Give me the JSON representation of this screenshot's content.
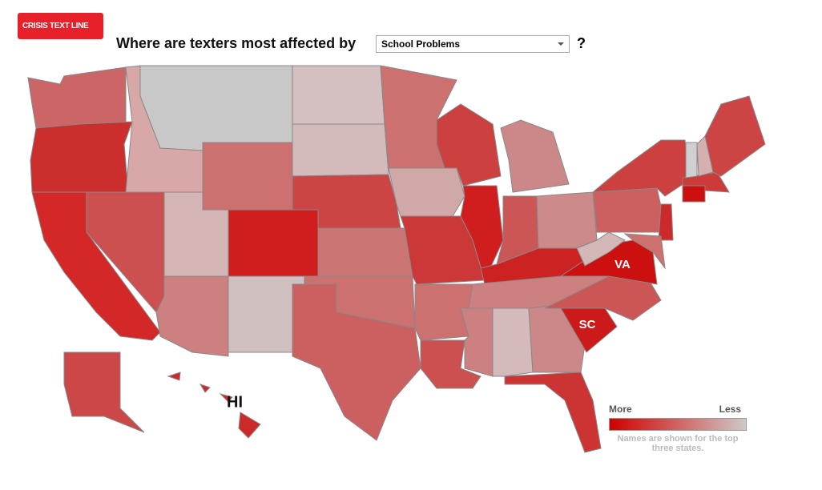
{
  "header": {
    "logo": "CRISIS TEXT LINE",
    "question": "Where are texters most affected by",
    "selected": "School Problems",
    "suffix": "?"
  },
  "map": {
    "labels": [
      "VA",
      "SC",
      "HI"
    ]
  },
  "legend": {
    "more": "More",
    "less": "Less",
    "note": "Names are shown for the top three states."
  }
}
